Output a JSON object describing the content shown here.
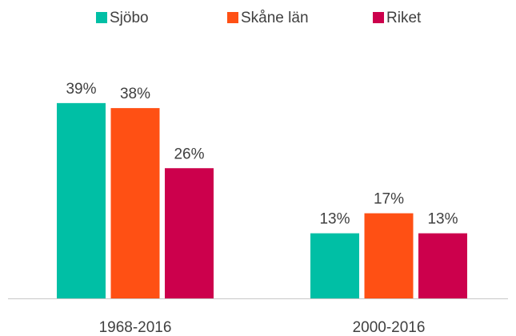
{
  "chart_data": {
    "type": "bar",
    "categories": [
      "1968-2016",
      "2000-2016"
    ],
    "series": [
      {
        "name": "Sjöbo",
        "color": "#00bfa5",
        "values": [
          39,
          13
        ],
        "value_labels": [
          "39%",
          "13%"
        ]
      },
      {
        "name": "Skåne län",
        "color": "#ff5014",
        "values": [
          38,
          17
        ],
        "value_labels": [
          "38%",
          "17%"
        ]
      },
      {
        "name": "Riket",
        "color": "#cc004c",
        "values": [
          26,
          13
        ],
        "value_labels": [
          "26%",
          "13%"
        ]
      }
    ],
    "legend": "top"
  }
}
